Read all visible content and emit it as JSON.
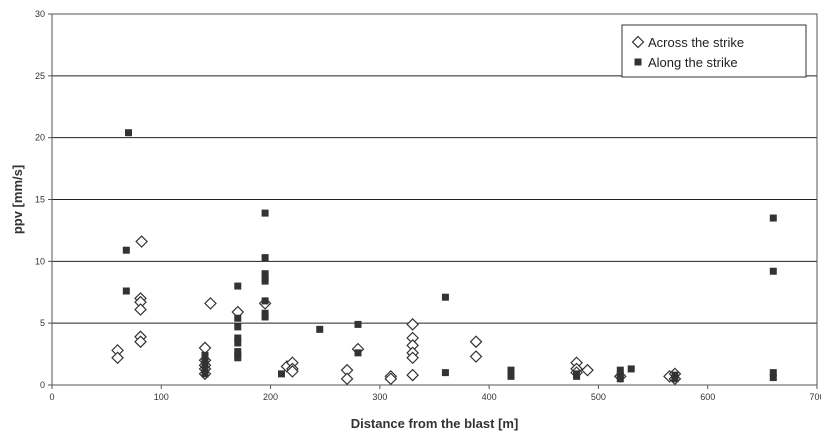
{
  "chart_data": {
    "type": "scatter",
    "xlabel": "Distance from the blast [m]",
    "ylabel": "ppv [mm/s]",
    "xlim": [
      0,
      700
    ],
    "ylim": [
      0,
      30
    ],
    "x_ticks": [
      "0",
      "100",
      "200",
      "300",
      "400",
      "500",
      "600",
      "700"
    ],
    "y_ticks": [
      "0",
      "5",
      "10",
      "15",
      "20",
      "25",
      "30"
    ],
    "grid": "horizontal",
    "legend_position": "top-right",
    "series": [
      {
        "name": "Across the strike",
        "marker": "diamond-open",
        "color": "#333333",
        "points": [
          [
            60,
            2.8
          ],
          [
            60,
            2.2
          ],
          [
            82,
            11.6
          ],
          [
            81,
            7.0
          ],
          [
            81,
            6.7
          ],
          [
            81,
            6.1
          ],
          [
            81,
            3.9
          ],
          [
            81,
            3.5
          ],
          [
            140,
            3.0
          ],
          [
            140,
            2.0
          ],
          [
            140,
            1.6
          ],
          [
            140,
            1.3
          ],
          [
            140,
            0.9
          ],
          [
            145,
            6.6
          ],
          [
            170,
            5.9
          ],
          [
            195,
            6.6
          ],
          [
            215,
            1.5
          ],
          [
            220,
            1.8
          ],
          [
            220,
            1.3
          ],
          [
            220,
            1.1
          ],
          [
            270,
            1.2
          ],
          [
            270,
            0.5
          ],
          [
            280,
            2.9
          ],
          [
            310,
            0.7
          ],
          [
            310,
            0.5
          ],
          [
            330,
            4.9
          ],
          [
            330,
            3.8
          ],
          [
            330,
            3.2
          ],
          [
            330,
            2.6
          ],
          [
            330,
            2.2
          ],
          [
            330,
            0.8
          ],
          [
            388,
            3.5
          ],
          [
            388,
            2.3
          ],
          [
            480,
            1.8
          ],
          [
            480,
            1.3
          ],
          [
            480,
            1.0
          ],
          [
            490,
            1.2
          ],
          [
            520,
            0.7
          ],
          [
            565,
            0.7
          ],
          [
            570,
            0.9
          ],
          [
            570,
            0.5
          ]
        ]
      },
      {
        "name": "Along the strike",
        "marker": "square-filled",
        "color": "#333333",
        "points": [
          [
            70,
            20.4
          ],
          [
            68,
            10.9
          ],
          [
            68,
            7.6
          ],
          [
            140,
            2.4
          ],
          [
            140,
            2.1
          ],
          [
            140,
            1.8
          ],
          [
            140,
            1.5
          ],
          [
            140,
            1.2
          ],
          [
            140,
            0.9
          ],
          [
            170,
            8.0
          ],
          [
            170,
            5.4
          ],
          [
            170,
            4.7
          ],
          [
            170,
            3.8
          ],
          [
            170,
            3.4
          ],
          [
            170,
            2.7
          ],
          [
            170,
            2.4
          ],
          [
            170,
            2.2
          ],
          [
            195,
            13.9
          ],
          [
            195,
            10.3
          ],
          [
            195,
            9.0
          ],
          [
            195,
            8.7
          ],
          [
            195,
            8.4
          ],
          [
            195,
            6.8
          ],
          [
            195,
            5.8
          ],
          [
            195,
            5.5
          ],
          [
            210,
            0.9
          ],
          [
            245,
            4.5
          ],
          [
            280,
            4.9
          ],
          [
            280,
            2.6
          ],
          [
            360,
            7.1
          ],
          [
            360,
            1.0
          ],
          [
            420,
            1.2
          ],
          [
            420,
            0.7
          ],
          [
            480,
            0.9
          ],
          [
            480,
            0.7
          ],
          [
            520,
            1.2
          ],
          [
            520,
            0.8
          ],
          [
            520,
            0.5
          ],
          [
            530,
            1.3
          ],
          [
            570,
            0.8
          ],
          [
            570,
            0.5
          ],
          [
            660,
            13.5
          ],
          [
            660,
            9.2
          ],
          [
            660,
            1.0
          ],
          [
            660,
            0.6
          ]
        ]
      }
    ]
  }
}
